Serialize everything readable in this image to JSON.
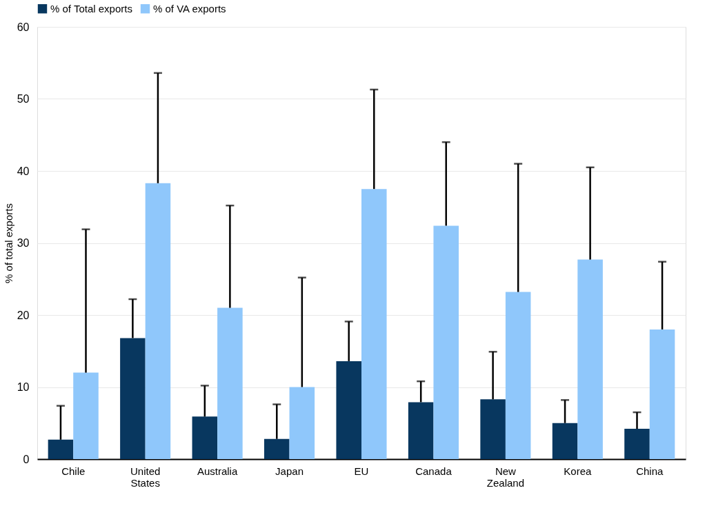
{
  "chart_data": {
    "type": "bar",
    "ylabel": "% of total exports",
    "categories": [
      "Chile",
      "United States",
      "Australia",
      "Japan",
      "EU",
      "Canada",
      "New Zealand",
      "Korea",
      "China"
    ],
    "series": [
      {
        "name": "% of Total exports",
        "color": "#08375f",
        "values": [
          2.7,
          16.8,
          5.9,
          2.8,
          13.6,
          7.9,
          8.3,
          5.0,
          4.2
        ],
        "errors": [
          [
            2.7,
            7.4
          ],
          [
            16.8,
            22.2
          ],
          [
            5.9,
            10.2
          ],
          [
            2.8,
            7.6
          ],
          [
            13.6,
            19.1
          ],
          [
            7.9,
            10.8
          ],
          [
            8.3,
            14.9
          ],
          [
            5.0,
            8.2
          ],
          [
            4.2,
            6.5
          ]
        ]
      },
      {
        "name": "% of VA exports",
        "color": "#8fc7fb",
        "values": [
          12.0,
          38.3,
          21.0,
          10.0,
          37.5,
          32.4,
          23.2,
          27.7,
          18.0
        ],
        "errors": [
          [
            12.0,
            31.9
          ],
          [
            38.3,
            53.6
          ],
          [
            21.0,
            35.2
          ],
          [
            10.0,
            25.2
          ],
          [
            37.5,
            51.3
          ],
          [
            32.4,
            44.0
          ],
          [
            23.2,
            41.0
          ],
          [
            27.7,
            40.5
          ],
          [
            18.0,
            27.4
          ]
        ]
      }
    ],
    "ylim": [
      0,
      60
    ],
    "yticks": [
      0,
      10,
      20,
      30,
      40,
      50,
      60
    ],
    "grid": "y",
    "legend": "top"
  }
}
